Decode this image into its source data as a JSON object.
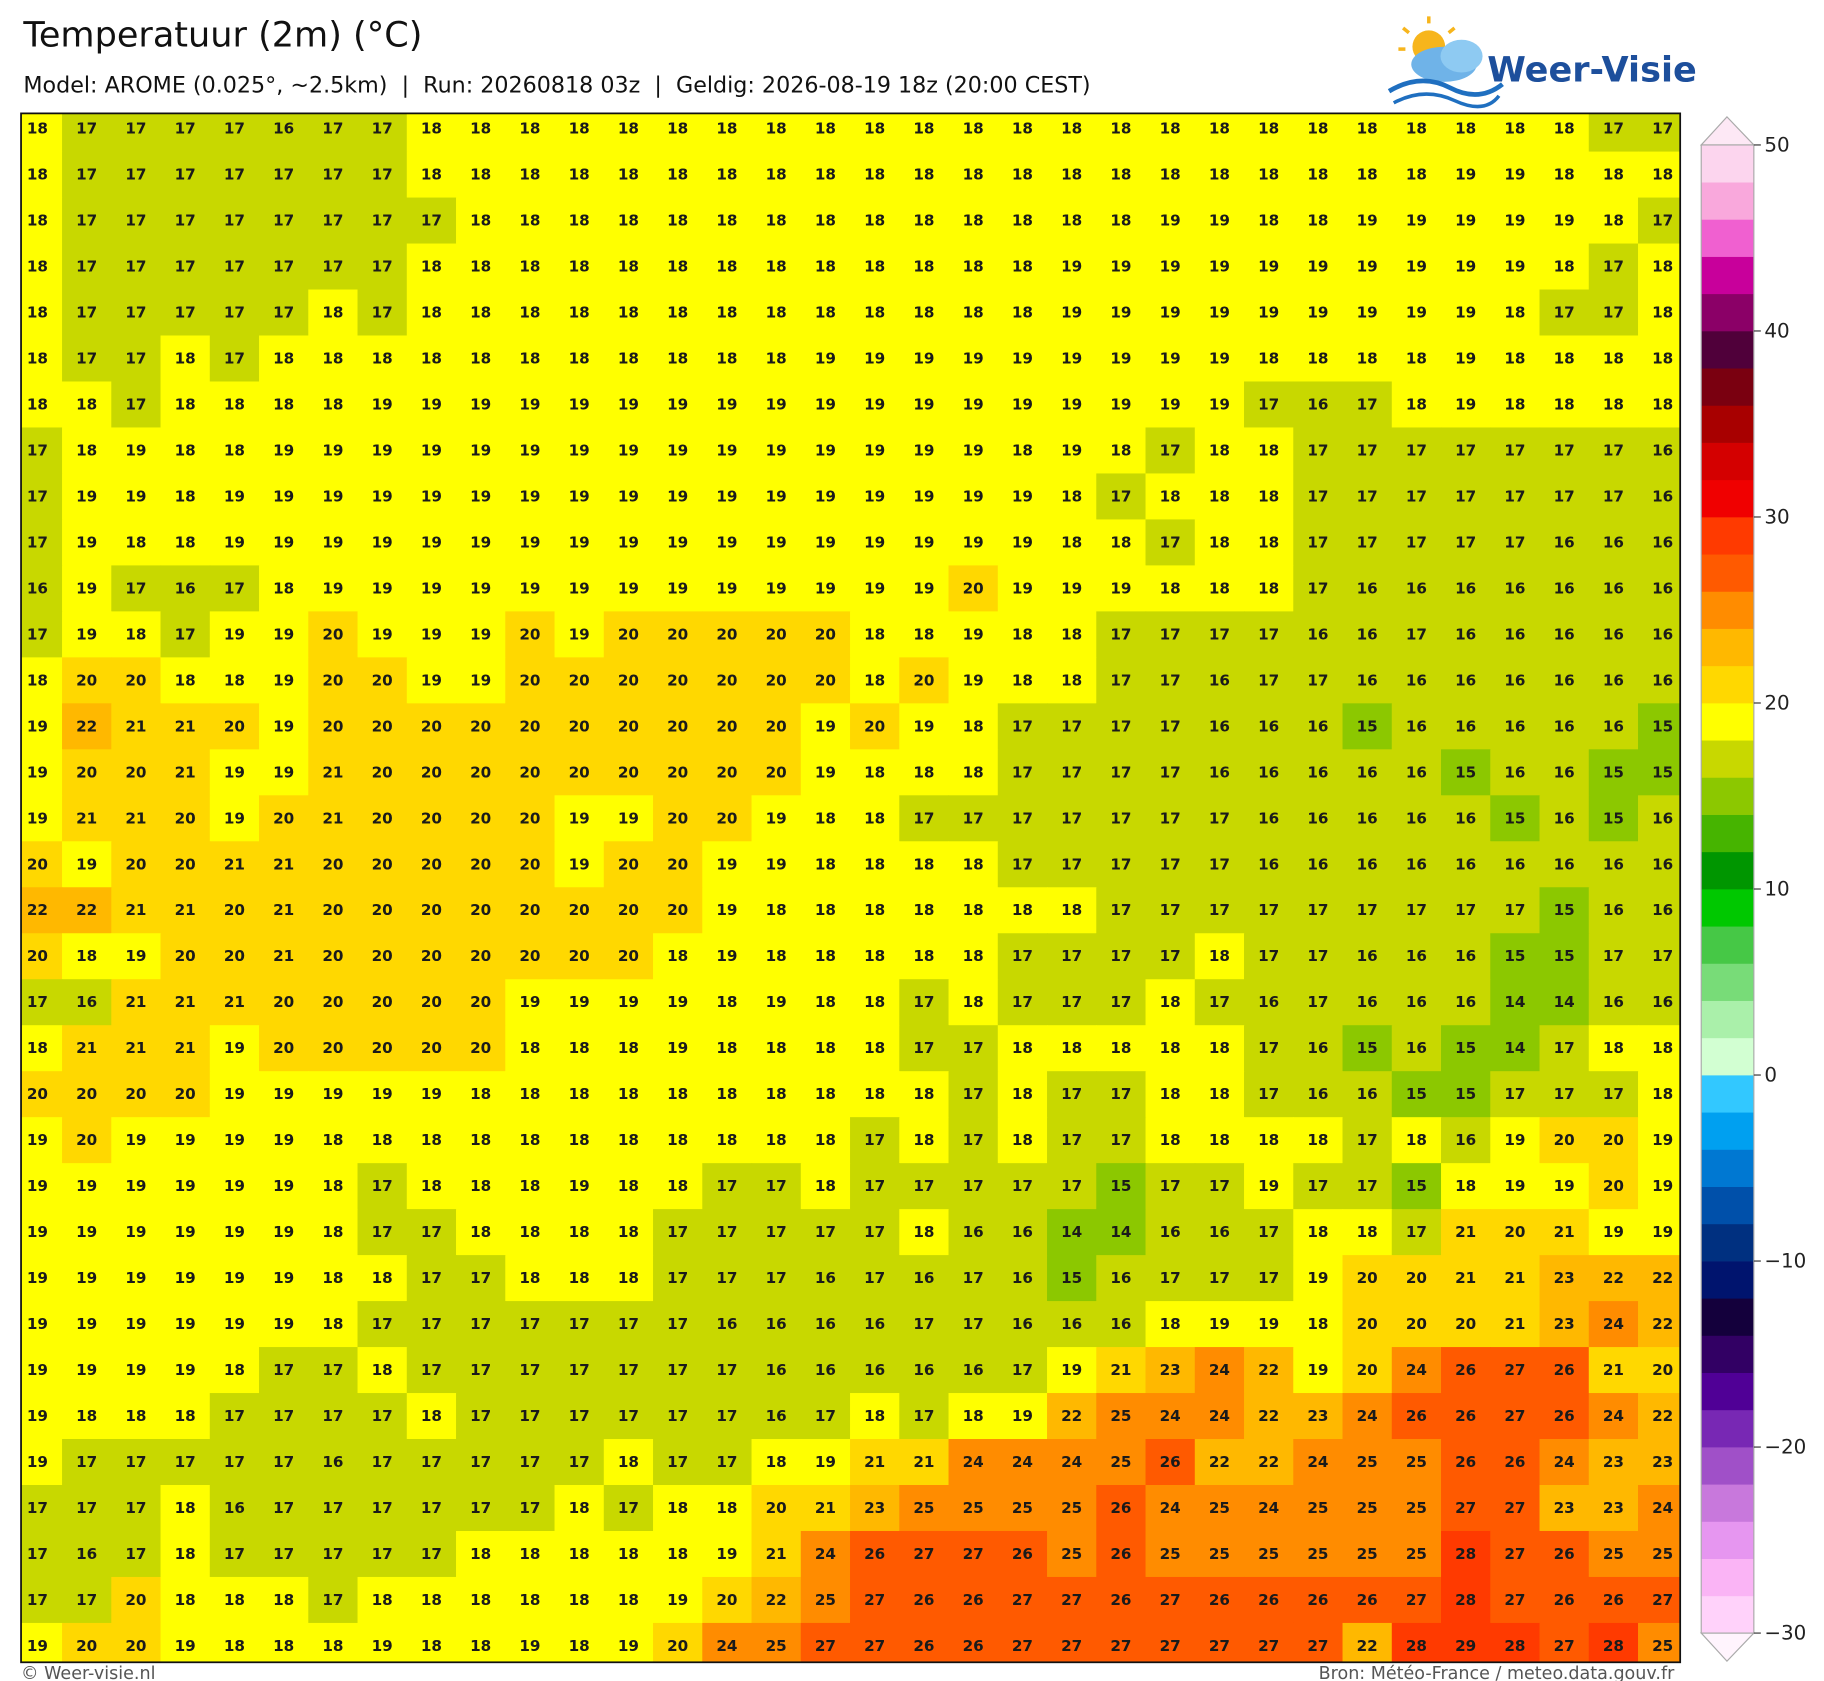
{
  "chart_data": {
    "type": "heatmap",
    "title": "Temperatuur (2m) (°C)",
    "subtitle": "Model: AROME (0.025°, ~2.5km)  |  Run: 20260818 03z  |  Geldig: 2026-08-19 18z (20:00 CEST)",
    "values": [
      [
        18,
        17,
        17,
        17,
        17,
        16,
        17,
        17,
        18,
        18,
        18,
        18,
        18,
        18,
        18,
        18,
        18,
        18,
        18,
        18,
        18,
        18,
        18,
        18,
        18,
        18,
        18,
        18,
        18,
        18,
        18,
        18,
        17,
        17
      ],
      [
        18,
        17,
        17,
        17,
        17,
        17,
        17,
        17,
        18,
        18,
        18,
        18,
        18,
        18,
        18,
        18,
        18,
        18,
        18,
        18,
        18,
        18,
        18,
        18,
        18,
        18,
        18,
        18,
        18,
        19,
        19,
        18,
        18,
        18
      ],
      [
        18,
        17,
        17,
        17,
        17,
        17,
        17,
        17,
        17,
        18,
        18,
        18,
        18,
        18,
        18,
        18,
        18,
        18,
        18,
        18,
        18,
        18,
        18,
        19,
        19,
        18,
        18,
        19,
        19,
        19,
        19,
        19,
        18,
        17
      ],
      [
        18,
        17,
        17,
        17,
        17,
        17,
        17,
        17,
        18,
        18,
        18,
        18,
        18,
        18,
        18,
        18,
        18,
        18,
        18,
        18,
        18,
        19,
        19,
        19,
        19,
        19,
        19,
        19,
        19,
        19,
        19,
        18,
        17,
        18
      ],
      [
        18,
        17,
        17,
        17,
        17,
        17,
        18,
        17,
        18,
        18,
        18,
        18,
        18,
        18,
        18,
        18,
        18,
        18,
        18,
        18,
        18,
        19,
        19,
        19,
        19,
        19,
        19,
        19,
        19,
        19,
        18,
        17,
        17,
        18
      ],
      [
        18,
        17,
        17,
        18,
        17,
        18,
        18,
        18,
        18,
        18,
        18,
        18,
        18,
        18,
        18,
        18,
        19,
        19,
        19,
        19,
        19,
        19,
        19,
        19,
        19,
        18,
        18,
        18,
        18,
        19,
        18,
        18,
        18,
        18
      ],
      [
        18,
        18,
        17,
        18,
        18,
        18,
        18,
        19,
        19,
        19,
        19,
        19,
        19,
        19,
        19,
        19,
        19,
        19,
        19,
        19,
        19,
        19,
        19,
        19,
        19,
        17,
        16,
        17,
        18,
        19,
        18,
        18,
        18,
        18
      ],
      [
        17,
        18,
        19,
        18,
        18,
        19,
        19,
        19,
        19,
        19,
        19,
        19,
        19,
        19,
        19,
        19,
        19,
        19,
        19,
        19,
        18,
        19,
        18,
        17,
        18,
        18,
        17,
        17,
        17,
        17,
        17,
        17,
        17,
        16
      ],
      [
        17,
        19,
        19,
        18,
        19,
        19,
        19,
        19,
        19,
        19,
        19,
        19,
        19,
        19,
        19,
        19,
        19,
        19,
        19,
        19,
        19,
        18,
        17,
        18,
        18,
        18,
        17,
        17,
        17,
        17,
        17,
        17,
        17,
        16
      ],
      [
        17,
        19,
        18,
        18,
        19,
        19,
        19,
        19,
        19,
        19,
        19,
        19,
        19,
        19,
        19,
        19,
        19,
        19,
        19,
        19,
        19,
        18,
        18,
        17,
        18,
        18,
        17,
        17,
        17,
        17,
        17,
        16,
        16,
        16
      ],
      [
        16,
        19,
        17,
        16,
        17,
        18,
        19,
        19,
        19,
        19,
        19,
        19,
        19,
        19,
        19,
        19,
        19,
        19,
        19,
        20,
        19,
        19,
        19,
        18,
        18,
        18,
        17,
        16,
        16,
        16,
        16,
        16,
        16,
        16
      ],
      [
        17,
        19,
        18,
        17,
        19,
        19,
        20,
        19,
        19,
        19,
        20,
        19,
        20,
        20,
        20,
        20,
        20,
        18,
        18,
        19,
        18,
        18,
        17,
        17,
        17,
        17,
        16,
        16,
        17,
        16,
        16,
        16,
        16,
        16
      ],
      [
        18,
        20,
        20,
        18,
        18,
        19,
        20,
        20,
        19,
        19,
        20,
        20,
        20,
        20,
        20,
        20,
        20,
        18,
        20,
        19,
        18,
        18,
        17,
        17,
        16,
        17,
        17,
        16,
        16,
        16,
        16,
        16,
        16,
        16
      ],
      [
        19,
        22,
        21,
        21,
        20,
        19,
        20,
        20,
        20,
        20,
        20,
        20,
        20,
        20,
        20,
        20,
        19,
        20,
        19,
        18,
        17,
        17,
        17,
        17,
        16,
        16,
        16,
        15,
        16,
        16,
        16,
        16,
        16,
        15
      ],
      [
        19,
        20,
        20,
        21,
        19,
        19,
        21,
        20,
        20,
        20,
        20,
        20,
        20,
        20,
        20,
        20,
        19,
        18,
        18,
        18,
        17,
        17,
        17,
        17,
        16,
        16,
        16,
        16,
        16,
        15,
        16,
        16,
        15,
        15
      ],
      [
        19,
        21,
        21,
        20,
        19,
        20,
        21,
        20,
        20,
        20,
        20,
        19,
        19,
        20,
        20,
        19,
        18,
        18,
        17,
        17,
        17,
        17,
        17,
        17,
        17,
        16,
        16,
        16,
        16,
        16,
        15,
        16,
        15,
        16
      ],
      [
        20,
        19,
        20,
        20,
        21,
        21,
        20,
        20,
        20,
        20,
        20,
        19,
        20,
        20,
        19,
        19,
        18,
        18,
        18,
        18,
        17,
        17,
        17,
        17,
        17,
        16,
        16,
        16,
        16,
        16,
        16,
        16,
        16,
        16
      ],
      [
        22,
        22,
        21,
        21,
        20,
        21,
        20,
        20,
        20,
        20,
        20,
        20,
        20,
        20,
        19,
        18,
        18,
        18,
        18,
        18,
        18,
        18,
        17,
        17,
        17,
        17,
        17,
        17,
        17,
        17,
        17,
        15,
        16,
        16
      ],
      [
        20,
        18,
        19,
        20,
        20,
        21,
        20,
        20,
        20,
        20,
        20,
        20,
        20,
        18,
        19,
        18,
        18,
        18,
        18,
        18,
        17,
        17,
        17,
        17,
        18,
        17,
        17,
        16,
        16,
        16,
        15,
        15,
        17,
        17
      ],
      [
        17,
        16,
        21,
        21,
        21,
        20,
        20,
        20,
        20,
        20,
        19,
        19,
        19,
        19,
        18,
        19,
        18,
        18,
        17,
        18,
        17,
        17,
        17,
        18,
        17,
        16,
        17,
        16,
        16,
        16,
        14,
        14,
        16,
        16
      ],
      [
        18,
        21,
        21,
        21,
        19,
        20,
        20,
        20,
        20,
        20,
        18,
        18,
        18,
        19,
        18,
        18,
        18,
        18,
        17,
        17,
        18,
        18,
        18,
        18,
        18,
        17,
        16,
        15,
        16,
        15,
        14,
        17,
        18,
        18
      ],
      [
        20,
        20,
        20,
        20,
        19,
        19,
        19,
        19,
        19,
        18,
        18,
        18,
        18,
        18,
        18,
        18,
        18,
        18,
        18,
        17,
        18,
        17,
        17,
        18,
        18,
        17,
        16,
        16,
        15,
        15,
        17,
        17,
        17,
        18
      ],
      [
        19,
        20,
        19,
        19,
        19,
        19,
        18,
        18,
        18,
        18,
        18,
        18,
        18,
        18,
        18,
        18,
        18,
        17,
        18,
        17,
        18,
        17,
        17,
        18,
        18,
        18,
        18,
        17,
        18,
        16,
        19,
        20,
        20,
        19
      ],
      [
        19,
        19,
        19,
        19,
        19,
        19,
        18,
        17,
        18,
        18,
        18,
        19,
        18,
        18,
        17,
        17,
        18,
        17,
        17,
        17,
        17,
        17,
        15,
        17,
        17,
        19,
        17,
        17,
        15,
        18,
        19,
        19,
        20,
        19
      ],
      [
        19,
        19,
        19,
        19,
        19,
        19,
        18,
        17,
        17,
        18,
        18,
        18,
        18,
        17,
        17,
        17,
        17,
        17,
        18,
        16,
        16,
        14,
        14,
        16,
        16,
        17,
        18,
        18,
        17,
        21,
        20,
        21,
        19,
        19
      ],
      [
        19,
        19,
        19,
        19,
        19,
        19,
        18,
        18,
        17,
        17,
        18,
        18,
        18,
        17,
        17,
        17,
        16,
        17,
        16,
        17,
        16,
        15,
        16,
        17,
        17,
        17,
        19,
        20,
        20,
        21,
        21,
        23,
        22,
        22
      ],
      [
        19,
        19,
        19,
        19,
        19,
        19,
        18,
        17,
        17,
        17,
        17,
        17,
        17,
        17,
        16,
        16,
        16,
        16,
        17,
        17,
        16,
        16,
        16,
        18,
        19,
        19,
        18,
        20,
        20,
        20,
        21,
        23,
        24,
        22
      ],
      [
        19,
        19,
        19,
        19,
        18,
        17,
        17,
        18,
        17,
        17,
        17,
        17,
        17,
        17,
        17,
        16,
        16,
        16,
        16,
        16,
        17,
        19,
        21,
        23,
        24,
        22,
        19,
        20,
        24,
        26,
        27,
        26,
        21,
        20
      ],
      [
        19,
        18,
        18,
        18,
        17,
        17,
        17,
        17,
        18,
        17,
        17,
        17,
        17,
        17,
        17,
        16,
        17,
        18,
        17,
        18,
        19,
        22,
        25,
        24,
        24,
        22,
        23,
        24,
        26,
        26,
        27,
        26,
        24,
        22
      ],
      [
        19,
        17,
        17,
        17,
        17,
        17,
        16,
        17,
        17,
        17,
        17,
        17,
        18,
        17,
        17,
        18,
        19,
        21,
        21,
        24,
        24,
        24,
        25,
        26,
        22,
        22,
        24,
        25,
        25,
        26,
        26,
        24,
        23,
        23
      ],
      [
        17,
        17,
        17,
        18,
        16,
        17,
        17,
        17,
        17,
        17,
        17,
        18,
        17,
        18,
        18,
        20,
        21,
        23,
        25,
        25,
        25,
        25,
        26,
        24,
        25,
        24,
        25,
        25,
        25,
        27,
        27,
        23,
        23,
        24
      ],
      [
        17,
        16,
        17,
        18,
        17,
        17,
        17,
        17,
        17,
        18,
        18,
        18,
        18,
        18,
        19,
        21,
        24,
        26,
        27,
        27,
        26,
        25,
        26,
        25,
        25,
        25,
        25,
        25,
        25,
        28,
        27,
        26,
        25,
        25
      ],
      [
        17,
        17,
        20,
        18,
        18,
        18,
        17,
        18,
        18,
        18,
        18,
        18,
        18,
        19,
        20,
        22,
        25,
        27,
        26,
        26,
        27,
        27,
        26,
        27,
        26,
        26,
        26,
        26,
        27,
        28,
        27,
        26,
        26,
        27
      ],
      [
        19,
        20,
        20,
        19,
        18,
        18,
        18,
        19,
        18,
        18,
        19,
        18,
        19,
        20,
        24,
        25,
        27,
        27,
        26,
        26,
        27,
        27,
        27,
        27,
        27,
        27,
        27,
        22,
        28,
        29,
        28,
        27,
        28,
        25
      ]
    ],
    "colorbar": {
      "ylim": [
        -30,
        50
      ],
      "yticks": [
        50,
        40,
        30,
        20,
        10,
        0,
        {
          "value": -10,
          "label": "−10"
        },
        {
          "value": -20,
          "label": "−20"
        },
        {
          "value": -30,
          "label": "−30"
        }
      ],
      "colors": [
        "#ffd2fa",
        "#fab4f5",
        "#e696f0",
        "#c878dc",
        "#a050c8",
        "#7828b4",
        "#500096",
        "#320064",
        "#14003c",
        "#00146e",
        "#003080",
        "#0050aa",
        "#0078d2",
        "#00a0f0",
        "#32c8ff",
        "#d2ffd2",
        "#aaf0aa",
        "#78dc78",
        "#46c846",
        "#00c800",
        "#009600",
        "#46b400",
        "#8cc800",
        "#c8d800",
        "#ffff00",
        "#ffd800",
        "#ffb800",
        "#ff8c00",
        "#ff5a00",
        "#ff3a00",
        "#f00000",
        "#d40000",
        "#a80000",
        "#7a0010",
        "#50003a",
        "#8b0067",
        "#c8009b",
        "#f060d0",
        "#f9a8dc",
        "#fcd5ee"
      ]
    }
  },
  "logo": "Weer-Visie",
  "footer": {
    "left": "© Weer-visie.nl",
    "right": "Bron: Météo-France / meteo.data.gouv.fr"
  }
}
